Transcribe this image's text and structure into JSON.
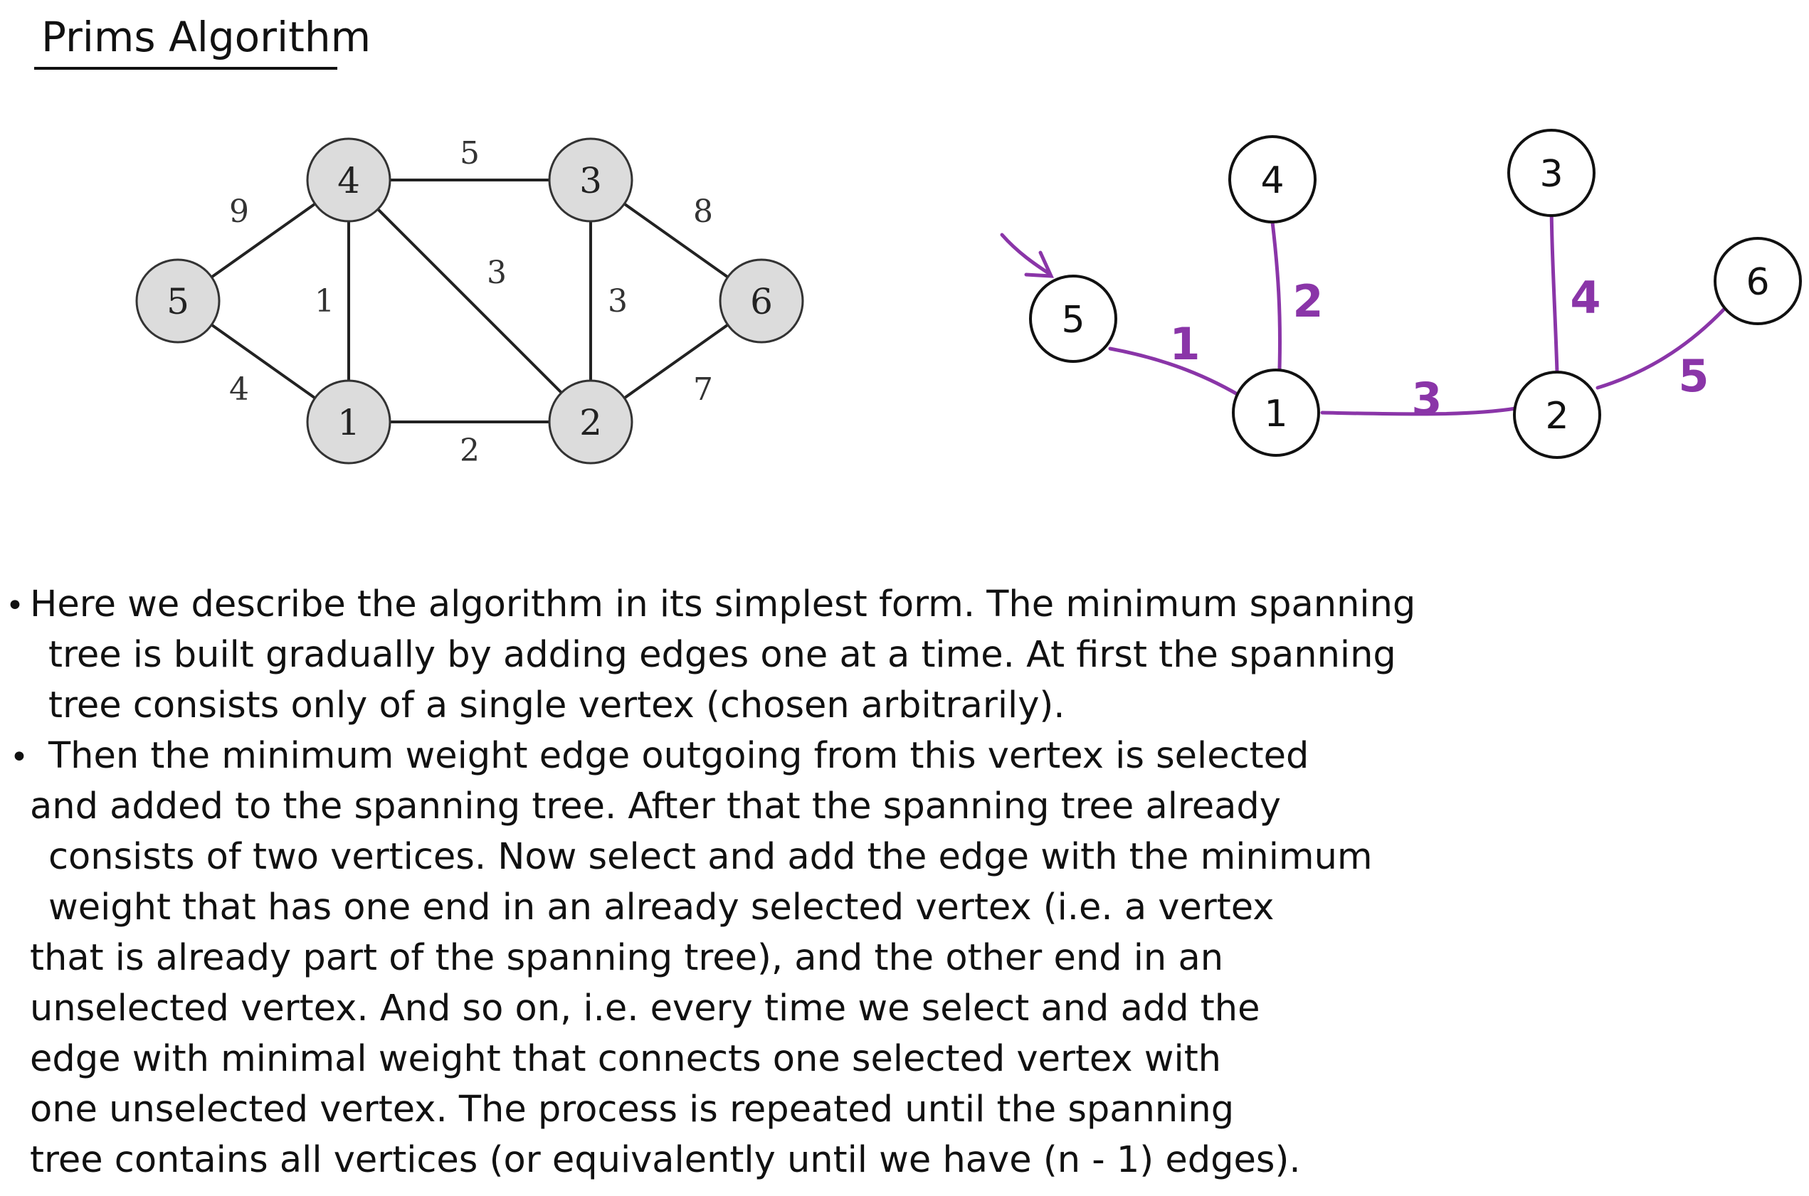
{
  "title": "Prims Algorithm",
  "graph": {
    "nodes": [
      "5",
      "4",
      "1",
      "3",
      "2",
      "6"
    ],
    "edges": [
      {
        "from": "5",
        "to": "4",
        "weight": "9"
      },
      {
        "from": "5",
        "to": "1",
        "weight": "4"
      },
      {
        "from": "4",
        "to": "3",
        "weight": "5"
      },
      {
        "from": "4",
        "to": "1",
        "weight": "1"
      },
      {
        "from": "4",
        "to": "2",
        "weight": "3"
      },
      {
        "from": "1",
        "to": "2",
        "weight": "2"
      },
      {
        "from": "3",
        "to": "2",
        "weight": "3"
      },
      {
        "from": "3",
        "to": "6",
        "weight": "8"
      },
      {
        "from": "2",
        "to": "6",
        "weight": "7"
      }
    ]
  },
  "mst": {
    "start_vertex": "5",
    "nodes": [
      "4",
      "3",
      "6",
      "5",
      "1",
      "2"
    ],
    "edges": [
      {
        "from": "5",
        "to": "1",
        "order": "1"
      },
      {
        "from": "4",
        "to": "1",
        "order": "2"
      },
      {
        "from": "1",
        "to": "2",
        "order": "3"
      },
      {
        "from": "3",
        "to": "2",
        "order": "4"
      },
      {
        "from": "2",
        "to": "6",
        "order": "5"
      }
    ]
  },
  "colors": {
    "node_fill": "#dcdcdc",
    "edge": "#222222",
    "mst_edge": "#8a35a8"
  },
  "bullets": [
    {
      "lines": [
        "Here we describe the algorithm in its simplest form. The minimum spanning",
        "tree is built gradually by adding edges one at a time. At first the spanning",
        "tree consists only of a single vertex (chosen arbitrarily)."
      ]
    },
    {
      "lines": [
        "Then the minimum weight edge outgoing from this vertex is selected",
        "and added to the spanning tree. After that the spanning tree already",
        "consists of two vertices. Now select and add the edge with the minimum",
        "weight that has one end in an already selected vertex (i.e. a vertex",
        "that is already part of the spanning tree), and the other end in an",
        "unselected vertex. And so on, i.e. every time we select and add the",
        "edge with minimal weight that connects one selected vertex with",
        "one unselected vertex. The process is repeated until the spanning",
        "tree contains all vertices (or equivalently until we have (n - 1) edges)."
      ]
    }
  ]
}
